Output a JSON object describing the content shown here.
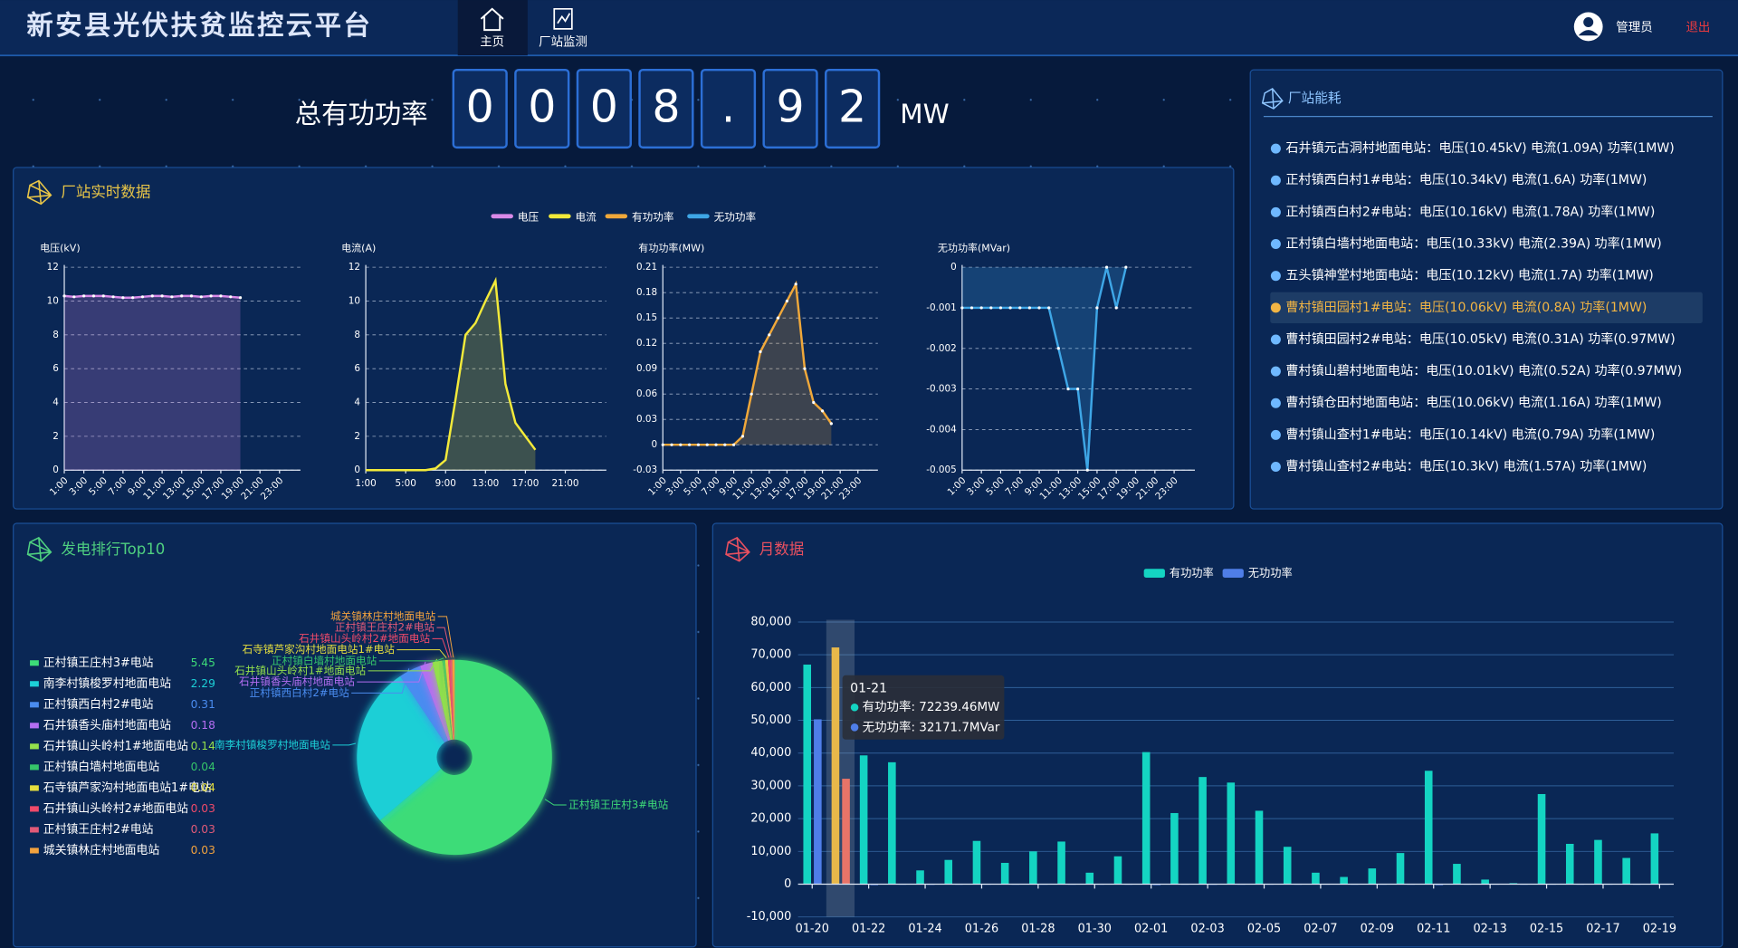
{
  "header": {
    "title": "新安县光伏扶贫监控云平台",
    "nav": [
      "主页",
      "厂站监测"
    ],
    "user": "管理员",
    "logout": "退出"
  },
  "power": {
    "label": "总有功功率",
    "digits": [
      "0",
      "0",
      "0",
      "8",
      ".",
      "9",
      "2"
    ],
    "unit": "MW"
  },
  "panels": {
    "realtime": "厂站实时数据",
    "consumption": "厂站能耗",
    "ranking": "发电排行Top10",
    "monthly": "月数据"
  },
  "consumption": {
    "highlight": 5,
    "items": [
      "石井镇元古洞村地面电站：电压(10.45kV) 电流(1.09A) 功率(1MW)",
      "正村镇西白村1#电站：电压(10.34kV) 电流(1.6A) 功率(1MW)",
      "正村镇西白村2#电站：电压(10.16kV) 电流(1.78A) 功率(1MW)",
      "正村镇白墙村地面电站：电压(10.33kV) 电流(2.39A) 功率(1MW)",
      "五头镇神堂村地面电站：电压(10.12kV) 电流(1.7A) 功率(1MW)",
      "曹村镇田园村1#电站：电压(10.06kV) 电流(0.8A) 功率(1MW)",
      "曹村镇田园村2#电站：电压(10.05kV) 电流(0.31A) 功率(0.97MW)",
      "曹村镇山碧村地面电站：电压(10.01kV) 电流(0.52A) 功率(0.97MW)",
      "曹村镇仓田村地面电站：电压(10.06kV) 电流(1.16A) 功率(1MW)",
      "曹村镇山查村1#电站：电压(10.14kV) 电流(0.79A) 功率(1MW)",
      "曹村镇山查村2#电站：电压(10.3kV) 电流(1.57A) 功率(1MW)"
    ]
  },
  "chart_data": [
    {
      "type": "line",
      "y_label": "电压(kV)",
      "area": true,
      "markers": true,
      "grid": true,
      "categories": [
        "1:00",
        null,
        "3:00",
        null,
        "5:00",
        null,
        "7:00",
        null,
        "9:00",
        null,
        "11:00",
        null,
        "13:00",
        null,
        "15:00",
        null,
        "17:00",
        null,
        "19:00",
        null,
        "21:00",
        null,
        "23:00",
        null
      ],
      "series": [
        {
          "name": "电压",
          "color": "#d98ae8",
          "values": [
            10.3,
            10.25,
            10.3,
            10.3,
            10.3,
            10.25,
            10.2,
            10.2,
            10.25,
            10.3,
            10.3,
            10.25,
            10.3,
            10.3,
            10.25,
            10.3,
            10.3,
            10.25,
            10.2,
            null,
            null,
            null,
            null,
            null
          ]
        }
      ],
      "ylim": [
        0,
        12
      ],
      "yticks": [
        0,
        2,
        4,
        6,
        8,
        10,
        12
      ]
    },
    {
      "type": "line",
      "y_label": "电流(A)",
      "area": true,
      "markers": false,
      "grid": true,
      "categories": [
        "1:00",
        null,
        null,
        null,
        "5:00",
        null,
        null,
        null,
        "9:00",
        null,
        null,
        null,
        "13:00",
        null,
        null,
        null,
        "17:00",
        null,
        null,
        null,
        "21:00",
        null,
        null,
        null
      ],
      "series": [
        {
          "name": "电流",
          "color": "#f3ea3a",
          "values": [
            0,
            0,
            0,
            0,
            0,
            0,
            0,
            0.1,
            0.6,
            4.2,
            8,
            8.7,
            10,
            11.2,
            5.1,
            2.8,
            2,
            1.2,
            null,
            null,
            null,
            null,
            null,
            null
          ]
        }
      ],
      "ylim": [
        0,
        12
      ],
      "yticks": [
        0,
        2,
        4,
        6,
        8,
        10,
        12
      ]
    },
    {
      "type": "line",
      "y_label": "有功功率(MW)",
      "area": true,
      "markers": true,
      "grid": true,
      "categories": [
        "1:00",
        null,
        "3:00",
        null,
        "5:00",
        null,
        "7:00",
        null,
        "9:00",
        null,
        "11:00",
        null,
        "13:00",
        null,
        "15:00",
        null,
        "17:00",
        null,
        "19:00",
        null,
        "21:00",
        null,
        "23:00",
        null
      ],
      "series": [
        {
          "name": "有功功率",
          "color": "#f0a83a",
          "values": [
            0,
            0,
            0,
            0,
            0,
            0,
            0,
            0,
            0,
            0.01,
            0.06,
            0.11,
            0.13,
            0.15,
            0.17,
            0.19,
            0.09,
            0.05,
            0.04,
            0.025,
            null,
            null,
            null,
            null
          ]
        }
      ],
      "ylim": [
        -0.03,
        0.21
      ],
      "yticks": [
        -0.03,
        0,
        0.03,
        0.06,
        0.09,
        0.12,
        0.15,
        0.18,
        0.21
      ]
    },
    {
      "type": "line",
      "y_label": "无功功率(MVar)",
      "area": true,
      "markers": true,
      "grid": true,
      "categories": [
        "1:00",
        null,
        "3:00",
        null,
        "5:00",
        null,
        "7:00",
        null,
        "9:00",
        null,
        "11:00",
        null,
        "13:00",
        null,
        "15:00",
        null,
        "17:00",
        null,
        "19:00",
        null,
        "21:00",
        null,
        "23:00",
        null
      ],
      "series": [
        {
          "name": "无功功率",
          "color": "#3ea6e6",
          "values": [
            -0.001,
            -0.001,
            -0.001,
            -0.001,
            -0.001,
            -0.001,
            -0.001,
            -0.001,
            -0.001,
            -0.001,
            -0.002,
            -0.003,
            -0.003,
            -0.005,
            -0.001,
            0,
            -0.001,
            0,
            null,
            null,
            null,
            null,
            null,
            null
          ]
        }
      ],
      "ylim": [
        -0.005,
        0
      ],
      "yticks": [
        0,
        -0.001,
        -0.002,
        -0.003,
        -0.004,
        -0.005
      ]
    },
    {
      "type": "pie",
      "categories": [
        "正村镇王庄村3#电站",
        "南李村镇梭罗村地面电站",
        "正村镇西白村2#电站",
        "石井镇香头庙村地面电站",
        "石井镇山头岭村1#地面电站",
        "正村镇白墙村地面电站",
        "石寺镇芦家沟村地面电站1#电站",
        "石井镇山头岭村2#地面电站",
        "正村镇王庄村2#电站",
        "城关镇林庄村地面电站"
      ],
      "values": [
        5.45,
        2.29,
        0.31,
        0.18,
        0.14,
        0.04,
        0.04,
        0.03,
        0.03,
        0.03
      ],
      "colors": [
        "#3ddc78",
        "#1ccfd6",
        "#4a8cf0",
        "#b46ef2",
        "#93e04c",
        "#35c46a",
        "#e6df3e",
        "#f04a6a",
        "#e25a78",
        "#f2a23e"
      ]
    },
    {
      "type": "bar",
      "grid": true,
      "categories": [
        "01-20",
        null,
        "01-22",
        null,
        "01-24",
        null,
        "01-26",
        null,
        "01-28",
        null,
        "01-30",
        null,
        "02-01",
        null,
        "02-03",
        null,
        "02-05",
        null,
        "02-07",
        null,
        "02-09",
        null,
        "02-11",
        null,
        "02-13",
        null,
        "02-15",
        null,
        "02-17",
        null,
        "02-19"
      ],
      "series": [
        {
          "name": "有功功率",
          "color": "#14d4c2",
          "values": [
            67000,
            72239.46,
            39300,
            37200,
            4200,
            7400,
            13200,
            6500,
            10000,
            13000,
            3500,
            8500,
            40300,
            21700,
            32700,
            31000,
            22400,
            11400,
            3500,
            2200,
            4800,
            9500,
            34600,
            6200,
            1400,
            300,
            27500,
            12300,
            13500,
            8000,
            15500
          ]
        },
        {
          "name": "无功功率",
          "color": "#4f7ee8",
          "values": [
            50300,
            32171.7,
            -300,
            0,
            -200,
            0,
            0,
            0,
            0,
            0,
            0,
            0,
            -300,
            0,
            -200,
            0,
            0,
            0,
            0,
            0,
            0,
            0,
            -300,
            0,
            0,
            0,
            0,
            0,
            0,
            0,
            0
          ]
        }
      ],
      "highlight_colors": [
        "#e8b84a",
        "#e87468"
      ],
      "ylim": [
        -10000,
        80000
      ],
      "yticks": [
        {
          "value": -10000,
          "label": "-10,000"
        },
        0,
        {
          "value": 10000,
          "label": "10,000"
        },
        {
          "value": 20000,
          "label": "20,000"
        },
        {
          "value": 30000,
          "label": "30,000"
        },
        {
          "value": 40000,
          "label": "40,000"
        },
        {
          "value": 50000,
          "label": "50,000"
        },
        {
          "value": 60000,
          "label": "60,000"
        },
        {
          "value": 70000,
          "label": "70,000"
        },
        {
          "value": 80000,
          "label": "80,000"
        }
      ],
      "tooltip": {
        "index": 1,
        "title": "01-21",
        "lines": [
          "有功功率: 72239.46MW",
          "无功功率: 32171.7MVar"
        ]
      }
    }
  ]
}
